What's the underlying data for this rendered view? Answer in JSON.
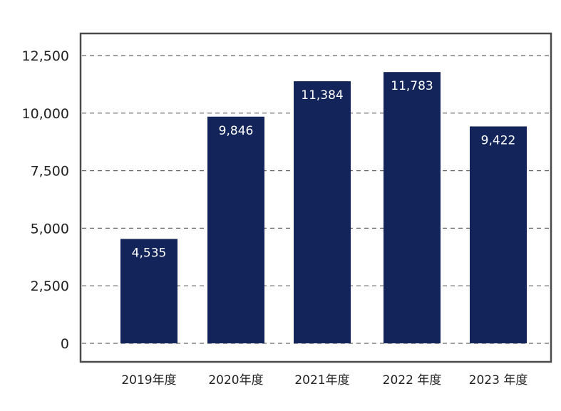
{
  "colors": {
    "bar": "#13245a",
    "frame": "#4a4a4a",
    "grid": "#666666",
    "label_on_bar": "#ffffff",
    "text": "#222222"
  },
  "chart_data": {
    "type": "bar",
    "categories": [
      "2019年度",
      "2020年度",
      "2021年度",
      "2022 年度",
      "2023 年度"
    ],
    "values": [
      4535,
      9846,
      11384,
      11783,
      9422
    ],
    "data_labels": [
      "4,535",
      "9,846",
      "11,384",
      "11,783",
      "9,422"
    ],
    "yticks": [
      0,
      2500,
      5000,
      7500,
      10000,
      12500
    ],
    "ytick_labels": [
      "0",
      "2,500",
      "5,000",
      "7,500",
      "10,000",
      "12,500"
    ],
    "ylim": [
      0,
      13500
    ],
    "grid": "horizontal-dashed",
    "legend": "none"
  }
}
